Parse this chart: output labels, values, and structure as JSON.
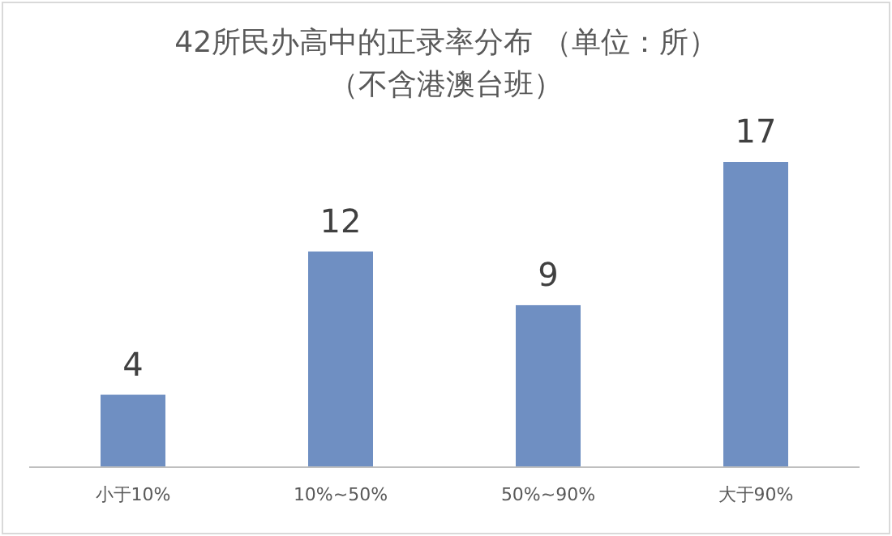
{
  "chart_data": {
    "type": "bar",
    "title": "42所民办高中的正录率分布 （单位：所）",
    "subtitle": "（不含港澳台班）",
    "categories": [
      "小于10%",
      "10%~50%",
      "50%~90%",
      "大于90%"
    ],
    "values": [
      4,
      12,
      9,
      17
    ],
    "color": "#6f8fc2",
    "data_labels": true
  }
}
